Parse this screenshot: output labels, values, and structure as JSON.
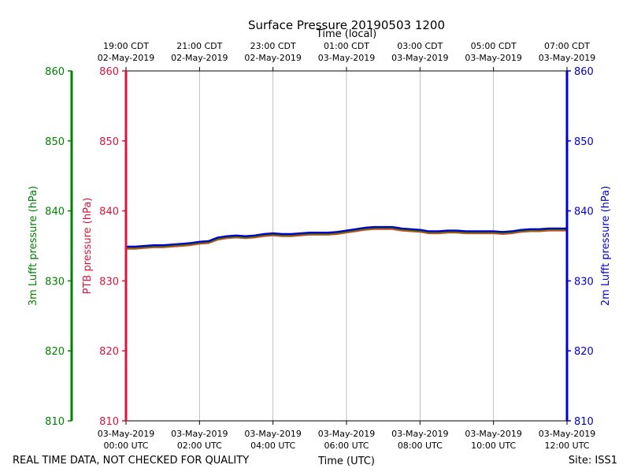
{
  "chart_data": {
    "type": "line",
    "title": "Surface Pressure 20190503 1200",
    "top_axis_label": "Time (local)",
    "xlabel": "Time (UTC)",
    "footer_left": "REAL TIME DATA, NOT CHECKED FOR QUALITY",
    "footer_right": "Site: ISS1",
    "left_outer_axis": {
      "label": "3m Lufft pressure (hPa)",
      "color": "#008000",
      "ylim": [
        810,
        860
      ],
      "ticks": [
        "810",
        "820",
        "830",
        "840",
        "850",
        "860"
      ]
    },
    "left_inner_axis": {
      "label": "PTB pressure (hPa)",
      "color": "#dc143c",
      "ylim": [
        810,
        860
      ],
      "ticks": [
        "810",
        "820",
        "830",
        "840",
        "850",
        "860"
      ]
    },
    "right_axis": {
      "label": "2m Lufft pressure (hPa)",
      "color": "#0000cd",
      "ylim": [
        810,
        860
      ],
      "ticks": [
        "810",
        "820",
        "830",
        "840",
        "850",
        "860"
      ]
    },
    "xlim": [
      0,
      12
    ],
    "grid": true,
    "bottom_ticks": [
      {
        "x": 0,
        "line1": "03-May-2019",
        "line2": "00:00 UTC"
      },
      {
        "x": 2,
        "line1": "03-May-2019",
        "line2": "02:00 UTC"
      },
      {
        "x": 4,
        "line1": "03-May-2019",
        "line2": "04:00 UTC"
      },
      {
        "x": 6,
        "line1": "03-May-2019",
        "line2": "06:00 UTC"
      },
      {
        "x": 8,
        "line1": "03-May-2019",
        "line2": "08:00 UTC"
      },
      {
        "x": 10,
        "line1": "03-May-2019",
        "line2": "10:00 UTC"
      },
      {
        "x": 12,
        "line1": "03-May-2019",
        "line2": "12:00 UTC"
      }
    ],
    "top_ticks": [
      {
        "x": 0,
        "line1": "19:00 CDT",
        "line2": "02-May-2019"
      },
      {
        "x": 2,
        "line1": "21:00 CDT",
        "line2": "02-May-2019"
      },
      {
        "x": 4,
        "line1": "23:00 CDT",
        "line2": "02-May-2019"
      },
      {
        "x": 6,
        "line1": "01:00 CDT",
        "line2": "03-May-2019"
      },
      {
        "x": 8,
        "line1": "03:00 CDT",
        "line2": "03-May-2019"
      },
      {
        "x": 10,
        "line1": "05:00 CDT",
        "line2": "03-May-2019"
      },
      {
        "x": 12,
        "line1": "07:00 CDT",
        "line2": "03-May-2019"
      }
    ],
    "x": [
      0,
      0.25,
      0.5,
      0.75,
      1.0,
      1.25,
      1.5,
      1.75,
      2.0,
      2.25,
      2.5,
      2.75,
      3.0,
      3.25,
      3.5,
      3.75,
      4.0,
      4.25,
      4.5,
      4.75,
      5.0,
      5.25,
      5.5,
      5.75,
      6.0,
      6.25,
      6.5,
      6.75,
      7.0,
      7.25,
      7.5,
      7.75,
      8.0,
      8.25,
      8.5,
      8.75,
      9.0,
      9.25,
      9.5,
      9.75,
      10.0,
      10.25,
      10.5,
      10.75,
      11.0,
      11.25,
      11.5,
      11.75,
      12.0
    ],
    "series": [
      {
        "name": "PTB",
        "color": "#c84b1e",
        "values": [
          834.6,
          834.6,
          834.7,
          834.8,
          834.8,
          834.9,
          835.0,
          835.1,
          835.3,
          835.4,
          835.9,
          836.1,
          836.2,
          836.1,
          836.2,
          836.4,
          836.5,
          836.4,
          836.4,
          836.5,
          836.6,
          836.6,
          836.6,
          836.7,
          836.9,
          837.1,
          837.3,
          837.4,
          837.4,
          837.4,
          837.2,
          837.1,
          837.0,
          836.8,
          836.8,
          836.9,
          836.9,
          836.8,
          836.8,
          836.8,
          836.8,
          836.7,
          836.8,
          837.0,
          837.1,
          837.1,
          837.2,
          837.2,
          837.2
        ]
      },
      {
        "name": "3m Lufft",
        "color": "#008000",
        "values": [
          834.8,
          834.8,
          834.9,
          835.0,
          835.0,
          835.1,
          835.2,
          835.3,
          835.5,
          835.6,
          836.1,
          836.3,
          836.4,
          836.3,
          836.4,
          836.6,
          836.7,
          836.6,
          836.6,
          836.7,
          836.8,
          836.8,
          836.8,
          836.9,
          837.1,
          837.3,
          837.5,
          837.6,
          837.6,
          837.6,
          837.4,
          837.3,
          837.2,
          837.0,
          837.0,
          837.1,
          837.1,
          837.0,
          837.0,
          837.0,
          837.0,
          836.9,
          837.0,
          837.2,
          837.3,
          837.3,
          837.4,
          837.4,
          837.4
        ]
      },
      {
        "name": "2m Lufft",
        "color": "#0000cd",
        "values": [
          834.9,
          834.9,
          835.0,
          835.1,
          835.1,
          835.2,
          835.3,
          835.4,
          835.6,
          835.7,
          836.2,
          836.4,
          836.5,
          836.4,
          836.5,
          836.7,
          836.8,
          836.7,
          836.7,
          836.8,
          836.9,
          836.9,
          836.9,
          837.0,
          837.2,
          837.4,
          837.6,
          837.7,
          837.7,
          837.7,
          837.5,
          837.4,
          837.3,
          837.1,
          837.1,
          837.2,
          837.2,
          837.1,
          837.1,
          837.1,
          837.1,
          837.0,
          837.1,
          837.3,
          837.4,
          837.4,
          837.5,
          837.5,
          837.5
        ]
      }
    ]
  }
}
